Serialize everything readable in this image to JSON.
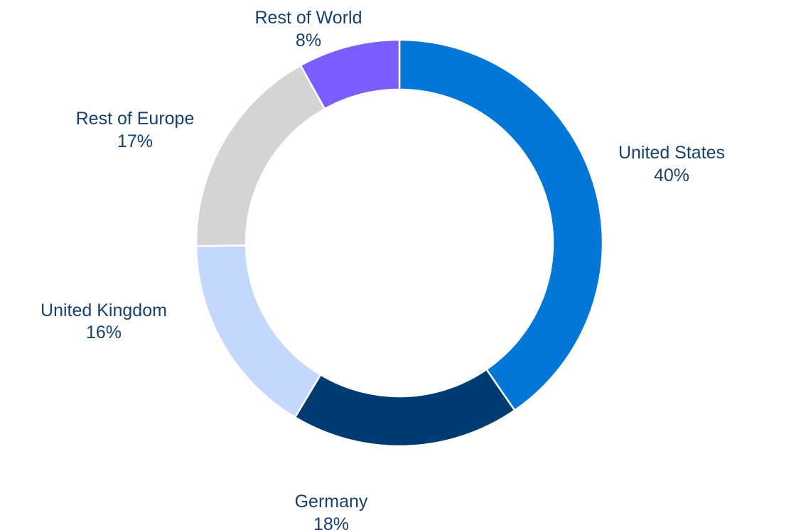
{
  "chart_data": {
    "type": "pie",
    "variant": "donut",
    "title": "",
    "start_angle_deg": 0,
    "direction": "clockwise",
    "legend": "none",
    "slices": [
      {
        "label": "United States",
        "value": 40,
        "value_label": "40%",
        "color": "#0277d7"
      },
      {
        "label": "Germany",
        "value": 18,
        "value_label": "18%",
        "color": "#003c72"
      },
      {
        "label": "United Kingdom",
        "value": 16,
        "value_label": "16%",
        "color": "#c3d8fc"
      },
      {
        "label": "Rest of Europe",
        "value": 17,
        "value_label": "17%",
        "color": "#d4d4d4"
      },
      {
        "label": "Rest of World",
        "value": 8,
        "value_label": "8%",
        "color": "#7b5cff"
      }
    ]
  },
  "colors": {
    "label_text": "#17406d",
    "background": "#ffffff"
  }
}
